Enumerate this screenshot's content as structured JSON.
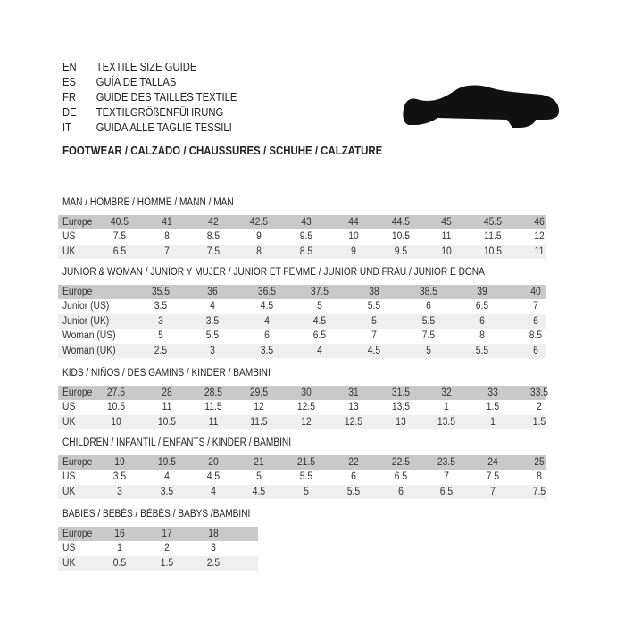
{
  "languages": [
    {
      "code": "EN",
      "title": "TEXTILE SIZE GUIDE"
    },
    {
      "code": "ES",
      "title": "GUÍA DE TALLAS"
    },
    {
      "code": "FR",
      "title": "GUIDE DES TAILLES TEXTILE"
    },
    {
      "code": "DE",
      "title": "TEXTILGRÖßENFÜHRUNG"
    },
    {
      "code": "IT",
      "title": "GUIDA ALLE TAGLIE TESSILI"
    }
  ],
  "subtitle": "FOOTWEAR / CALZADO / CHAUSSURES / SCHUHE / CALZATURE",
  "shoe_icon": "shoe-icon",
  "colors": {
    "header_row": "#c9c9c9",
    "alt_row": "#efefef"
  },
  "sections": [
    {
      "title": "MAN / HOMBRE / HOMME / MANN / MAN",
      "rows": [
        {
          "label": "Europe",
          "values": [
            "40.5",
            "41",
            "42",
            "42.5",
            "43",
            "44",
            "44.5",
            "45",
            "45.5",
            "46"
          ]
        },
        {
          "label": "US",
          "values": [
            "7.5",
            "8",
            "8.5",
            "9",
            "9.5",
            "10",
            "10.5",
            "11",
            "11.5",
            "12"
          ]
        },
        {
          "label": "UK",
          "values": [
            "6.5",
            "7",
            "7.5",
            "8",
            "8.5",
            "9",
            "9.5",
            "10",
            "10.5",
            "11"
          ]
        }
      ]
    },
    {
      "title": "JUNIOR & WOMAN / JUNIOR Y MUJER / JUNIOR ET FEMME / JUNIOR UND FRAU / JUNIOR E DONA",
      "rows": [
        {
          "label": "Europe",
          "values": [
            "35.5",
            "36",
            "36.5",
            "37.5",
            "38",
            "38.5",
            "39",
            "40"
          ]
        },
        {
          "label": "Junior (US)",
          "values": [
            "3.5",
            "4",
            "4.5",
            "5",
            "5.5",
            "6",
            "6.5",
            "7"
          ]
        },
        {
          "label": "Junior (UK)",
          "values": [
            "3",
            "3.5",
            "4",
            "4.5",
            "5",
            "5.5",
            "6",
            "6"
          ]
        },
        {
          "label": "Woman (US)",
          "values": [
            "5",
            "5.5",
            "6",
            "6.5",
            "7",
            "7.5",
            "8",
            "8.5"
          ]
        },
        {
          "label": "Woman (UK)",
          "values": [
            "2.5",
            "3",
            "3.5",
            "4",
            "4.5",
            "5",
            "5.5",
            "6"
          ]
        }
      ]
    },
    {
      "title": "KIDS / NIÑOS / DES GAMINS / KINDER / BAMBINI",
      "rows": [
        {
          "label": "Europe",
          "values": [
            "27.5",
            "28",
            "28.5",
            "29.5",
            "30",
            "31",
            "31.5",
            "32",
            "33",
            "33.5"
          ]
        },
        {
          "label": "US",
          "values": [
            "10.5",
            "11",
            "11.5",
            "12",
            "12.5",
            "13",
            "13.5",
            "1",
            "1.5",
            "2"
          ]
        },
        {
          "label": "UK",
          "values": [
            "10",
            "10.5",
            "11",
            "11.5",
            "12",
            "12.5",
            "13",
            "13.5",
            "1",
            "1.5"
          ]
        }
      ]
    },
    {
      "title": "CHILDREN / INFANTIL / ENFANTS / KINDER / BAMBINI",
      "rows": [
        {
          "label": "Europe",
          "values": [
            "19",
            "19.5",
            "20",
            "21",
            "21.5",
            "22",
            "22.5",
            "23.5",
            "24",
            "25"
          ]
        },
        {
          "label": "US",
          "values": [
            "3.5",
            "4",
            "4.5",
            "5",
            "5.5",
            "6",
            "6.5",
            "7",
            "7.5",
            "8"
          ]
        },
        {
          "label": "UK",
          "values": [
            "3",
            "3.5",
            "4",
            "4.5",
            "5",
            "5.5",
            "6",
            "6.5",
            "7",
            "7.5"
          ]
        }
      ]
    },
    {
      "title": "BABIES  / BEBÉS / BÉBÉS / BABYS /BAMBINI",
      "rows": [
        {
          "label": "Europe",
          "values": [
            "16",
            "17",
            "18"
          ]
        },
        {
          "label": "US",
          "values": [
            "1",
            "2",
            "3"
          ]
        },
        {
          "label": "UK",
          "values": [
            "0.5",
            "1.5",
            "2.5"
          ]
        }
      ]
    }
  ]
}
